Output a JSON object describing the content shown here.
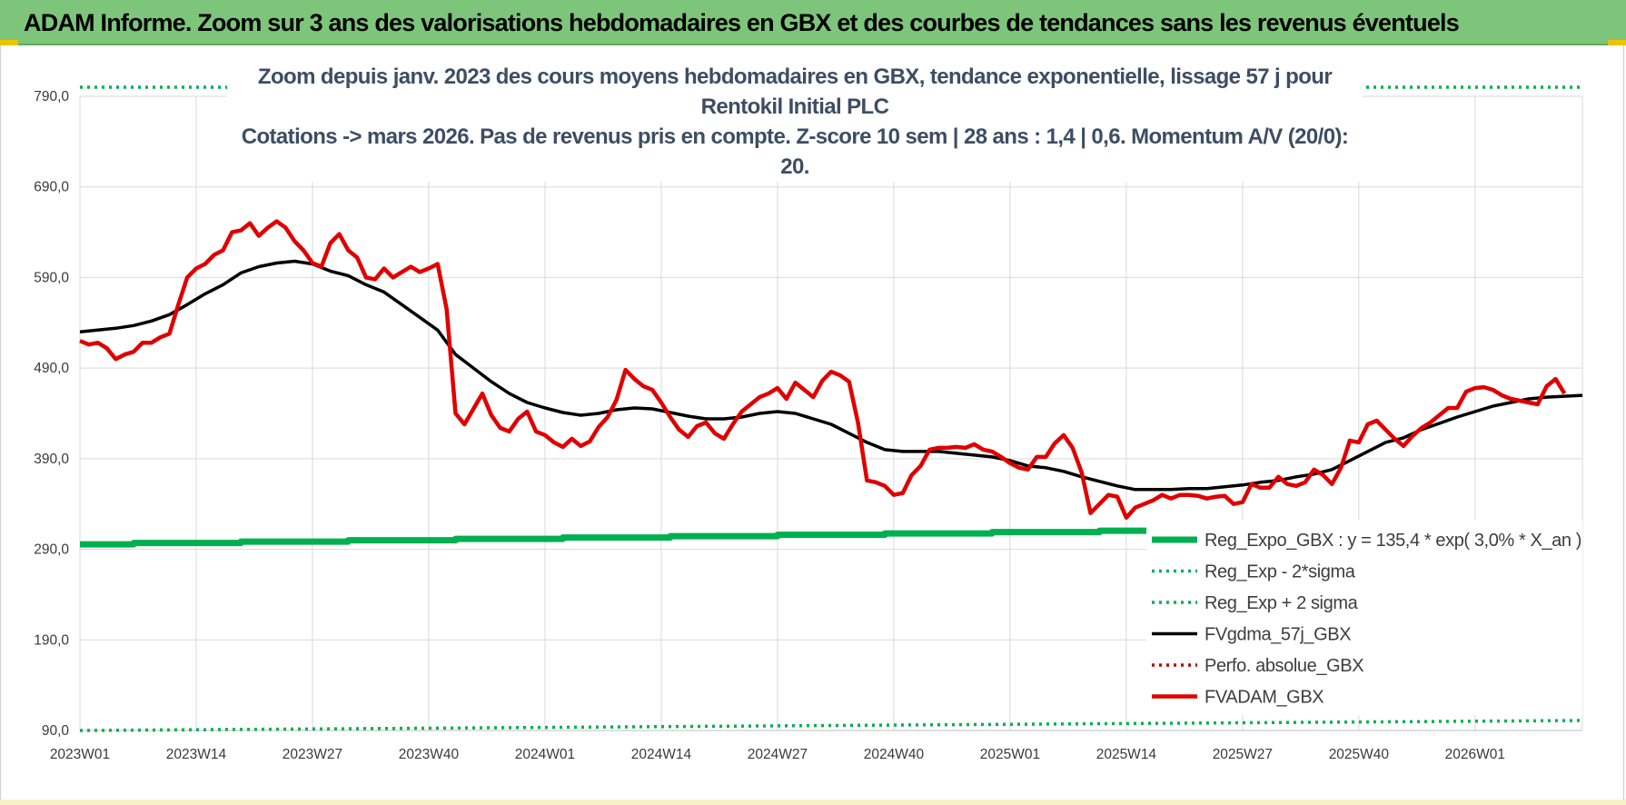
{
  "banner": {
    "title": "ADAM Informe. Zoom sur 3 ans des valorisations hebdomadaires en GBX et des courbes de tendances sans les revenus éventuels",
    "background": "#7dc57a"
  },
  "chart_data": {
    "type": "line",
    "title_line1": "Zoom depuis janv. 2023 des cours moyens hebdomadaires en GBX, tendance exponentielle, lissage 57 j pour Rentokil Initial PLC",
    "title_line2": "Cotations -> mars 2026. Pas de revenus pris en compte. Z-score 10 sem | 28 ans : 1,4 | 0,6. Momentum A/V (20/0): 20.",
    "y_ticks": [
      "90,0",
      "190,0",
      "290,0",
      "390,0",
      "490,0",
      "590,0",
      "690,0",
      "790,0"
    ],
    "y_tick_values": [
      90,
      190,
      290,
      390,
      490,
      590,
      690,
      790
    ],
    "ylim": [
      90,
      790
    ],
    "x_ticks": [
      "2023W01",
      "2023W14",
      "2023W27",
      "2023W40",
      "2024W01",
      "2024W14",
      "2024W27",
      "2024W40",
      "2025W01",
      "2025W14",
      "2025W27",
      "2025W40",
      "2026W01"
    ],
    "x_tick_weeks": [
      0,
      13,
      26,
      39,
      52,
      65,
      78,
      91,
      104,
      117,
      130,
      143,
      156
    ],
    "weeks_total": 168,
    "grid": true,
    "legend_position": "bottom-right",
    "series": [
      {
        "name": "Reg_Expo_GBX : y = 135,4 * exp( 3,0% *  X_an )",
        "style": "solid-thick",
        "color": "#00b050",
        "points": [
          [
            0,
            296
          ],
          [
            168,
            317
          ]
        ],
        "stepped": true
      },
      {
        "name": "Reg_Exp - 2*sigma",
        "style": "dotted",
        "color": "#00b050",
        "points": [
          [
            0,
            90
          ],
          [
            168,
            101
          ]
        ]
      },
      {
        "name": "Reg_Exp + 2 sigma",
        "style": "dotted",
        "color": "#00b050",
        "points": [
          [
            0,
            800
          ],
          [
            168,
            800
          ]
        ]
      },
      {
        "name": "FVgdma_57j_GBX",
        "style": "solid",
        "color": "#000000",
        "points": [
          [
            0,
            530
          ],
          [
            2,
            532
          ],
          [
            4,
            534
          ],
          [
            6,
            537
          ],
          [
            8,
            542
          ],
          [
            10,
            549
          ],
          [
            12,
            560
          ],
          [
            14,
            572
          ],
          [
            16,
            582
          ],
          [
            18,
            595
          ],
          [
            20,
            602
          ],
          [
            22,
            606
          ],
          [
            24,
            608
          ],
          [
            26,
            605
          ],
          [
            28,
            597
          ],
          [
            30,
            592
          ],
          [
            32,
            582
          ],
          [
            34,
            574
          ],
          [
            36,
            560
          ],
          [
            38,
            546
          ],
          [
            40,
            532
          ],
          [
            42,
            505
          ],
          [
            44,
            490
          ],
          [
            46,
            475
          ],
          [
            48,
            462
          ],
          [
            50,
            452
          ],
          [
            52,
            446
          ],
          [
            54,
            441
          ],
          [
            56,
            438
          ],
          [
            58,
            440
          ],
          [
            60,
            444
          ],
          [
            62,
            446
          ],
          [
            64,
            445
          ],
          [
            66,
            441
          ],
          [
            68,
            437
          ],
          [
            70,
            434
          ],
          [
            72,
            434
          ],
          [
            74,
            436
          ],
          [
            76,
            440
          ],
          [
            78,
            442
          ],
          [
            80,
            440
          ],
          [
            82,
            434
          ],
          [
            84,
            428
          ],
          [
            86,
            418
          ],
          [
            88,
            408
          ],
          [
            90,
            400
          ],
          [
            92,
            398
          ],
          [
            94,
            398
          ],
          [
            96,
            398
          ],
          [
            98,
            396
          ],
          [
            100,
            394
          ],
          [
            102,
            392
          ],
          [
            104,
            388
          ],
          [
            106,
            382
          ],
          [
            108,
            380
          ],
          [
            110,
            376
          ],
          [
            112,
            370
          ],
          [
            114,
            365
          ],
          [
            116,
            360
          ],
          [
            118,
            356
          ],
          [
            120,
            356
          ],
          [
            122,
            356
          ],
          [
            124,
            357
          ],
          [
            126,
            357
          ],
          [
            128,
            359
          ],
          [
            130,
            361
          ],
          [
            132,
            364
          ],
          [
            134,
            366
          ],
          [
            136,
            370
          ],
          [
            138,
            373
          ],
          [
            140,
            378
          ],
          [
            142,
            388
          ],
          [
            144,
            398
          ],
          [
            146,
            408
          ],
          [
            148,
            413
          ],
          [
            150,
            422
          ],
          [
            152,
            429
          ],
          [
            154,
            436
          ],
          [
            156,
            442
          ],
          [
            158,
            448
          ],
          [
            160,
            452
          ],
          [
            162,
            456
          ],
          [
            164,
            458
          ],
          [
            166,
            459
          ],
          [
            168,
            460
          ]
        ]
      },
      {
        "name": "Perfo. absolue_GBX",
        "style": "dotted",
        "color": "#c00000",
        "points": []
      },
      {
        "name": "FVADAM_GBX",
        "style": "solid-thick",
        "color": "#e00000",
        "points": [
          [
            0,
            520
          ],
          [
            1,
            516
          ],
          [
            2,
            518
          ],
          [
            3,
            512
          ],
          [
            4,
            500
          ],
          [
            5,
            505
          ],
          [
            6,
            508
          ],
          [
            7,
            518
          ],
          [
            8,
            518
          ],
          [
            9,
            524
          ],
          [
            10,
            528
          ],
          [
            11,
            560
          ],
          [
            12,
            590
          ],
          [
            13,
            600
          ],
          [
            14,
            605
          ],
          [
            15,
            615
          ],
          [
            16,
            620
          ],
          [
            17,
            640
          ],
          [
            18,
            642
          ],
          [
            19,
            650
          ],
          [
            20,
            636
          ],
          [
            21,
            645
          ],
          [
            22,
            652
          ],
          [
            23,
            645
          ],
          [
            24,
            630
          ],
          [
            25,
            620
          ],
          [
            26,
            606
          ],
          [
            27,
            602
          ],
          [
            28,
            628
          ],
          [
            29,
            638
          ],
          [
            30,
            620
          ],
          [
            31,
            612
          ],
          [
            32,
            590
          ],
          [
            33,
            588
          ],
          [
            34,
            600
          ],
          [
            35,
            590
          ],
          [
            36,
            596
          ],
          [
            37,
            602
          ],
          [
            38,
            596
          ],
          [
            39,
            600
          ],
          [
            40,
            605
          ],
          [
            41,
            555
          ],
          [
            42,
            440
          ],
          [
            43,
            428
          ],
          [
            44,
            445
          ],
          [
            45,
            462
          ],
          [
            46,
            438
          ],
          [
            47,
            424
          ],
          [
            48,
            420
          ],
          [
            49,
            434
          ],
          [
            50,
            442
          ],
          [
            51,
            420
          ],
          [
            52,
            416
          ],
          [
            53,
            408
          ],
          [
            54,
            403
          ],
          [
            55,
            412
          ],
          [
            56,
            404
          ],
          [
            57,
            409
          ],
          [
            58,
            425
          ],
          [
            59,
            436
          ],
          [
            60,
            455
          ],
          [
            61,
            488
          ],
          [
            62,
            478
          ],
          [
            63,
            470
          ],
          [
            64,
            466
          ],
          [
            65,
            452
          ],
          [
            66,
            436
          ],
          [
            67,
            422
          ],
          [
            68,
            414
          ],
          [
            69,
            426
          ],
          [
            70,
            430
          ],
          [
            71,
            418
          ],
          [
            72,
            412
          ],
          [
            73,
            428
          ],
          [
            74,
            442
          ],
          [
            75,
            450
          ],
          [
            76,
            458
          ],
          [
            77,
            462
          ],
          [
            78,
            468
          ],
          [
            79,
            456
          ],
          [
            80,
            474
          ],
          [
            81,
            466
          ],
          [
            82,
            458
          ],
          [
            83,
            476
          ],
          [
            84,
            486
          ],
          [
            85,
            482
          ],
          [
            86,
            475
          ],
          [
            87,
            430
          ],
          [
            88,
            366
          ],
          [
            89,
            364
          ],
          [
            90,
            360
          ],
          [
            91,
            350
          ],
          [
            92,
            352
          ],
          [
            93,
            372
          ],
          [
            94,
            382
          ],
          [
            95,
            400
          ],
          [
            96,
            402
          ],
          [
            97,
            402
          ],
          [
            98,
            403
          ],
          [
            99,
            402
          ],
          [
            100,
            406
          ],
          [
            101,
            400
          ],
          [
            102,
            398
          ],
          [
            103,
            392
          ],
          [
            104,
            385
          ],
          [
            105,
            380
          ],
          [
            106,
            378
          ],
          [
            107,
            392
          ],
          [
            108,
            392
          ],
          [
            109,
            407
          ],
          [
            110,
            416
          ],
          [
            111,
            402
          ],
          [
            112,
            375
          ],
          [
            113,
            330
          ],
          [
            114,
            340
          ],
          [
            115,
            350
          ],
          [
            116,
            348
          ],
          [
            117,
            325
          ],
          [
            118,
            336
          ],
          [
            119,
            340
          ],
          [
            120,
            344
          ],
          [
            121,
            350
          ],
          [
            122,
            346
          ],
          [
            123,
            350
          ],
          [
            124,
            350
          ],
          [
            125,
            349
          ],
          [
            126,
            346
          ],
          [
            127,
            348
          ],
          [
            128,
            349
          ],
          [
            129,
            340
          ],
          [
            130,
            342
          ],
          [
            131,
            362
          ],
          [
            132,
            358
          ],
          [
            133,
            358
          ],
          [
            134,
            370
          ],
          [
            135,
            362
          ],
          [
            136,
            360
          ],
          [
            137,
            364
          ],
          [
            138,
            378
          ],
          [
            139,
            372
          ],
          [
            140,
            362
          ],
          [
            141,
            380
          ],
          [
            142,
            410
          ],
          [
            143,
            408
          ],
          [
            144,
            428
          ],
          [
            145,
            432
          ],
          [
            146,
            422
          ],
          [
            147,
            412
          ],
          [
            148,
            404
          ],
          [
            149,
            415
          ],
          [
            150,
            424
          ],
          [
            151,
            430
          ],
          [
            152,
            438
          ],
          [
            153,
            446
          ],
          [
            154,
            446
          ],
          [
            155,
            464
          ],
          [
            156,
            468
          ],
          [
            157,
            469
          ],
          [
            158,
            466
          ],
          [
            159,
            460
          ],
          [
            160,
            456
          ],
          [
            161,
            454
          ],
          [
            162,
            452
          ],
          [
            163,
            450
          ],
          [
            164,
            470
          ],
          [
            165,
            478
          ],
          [
            166,
            462
          ]
        ]
      }
    ]
  }
}
